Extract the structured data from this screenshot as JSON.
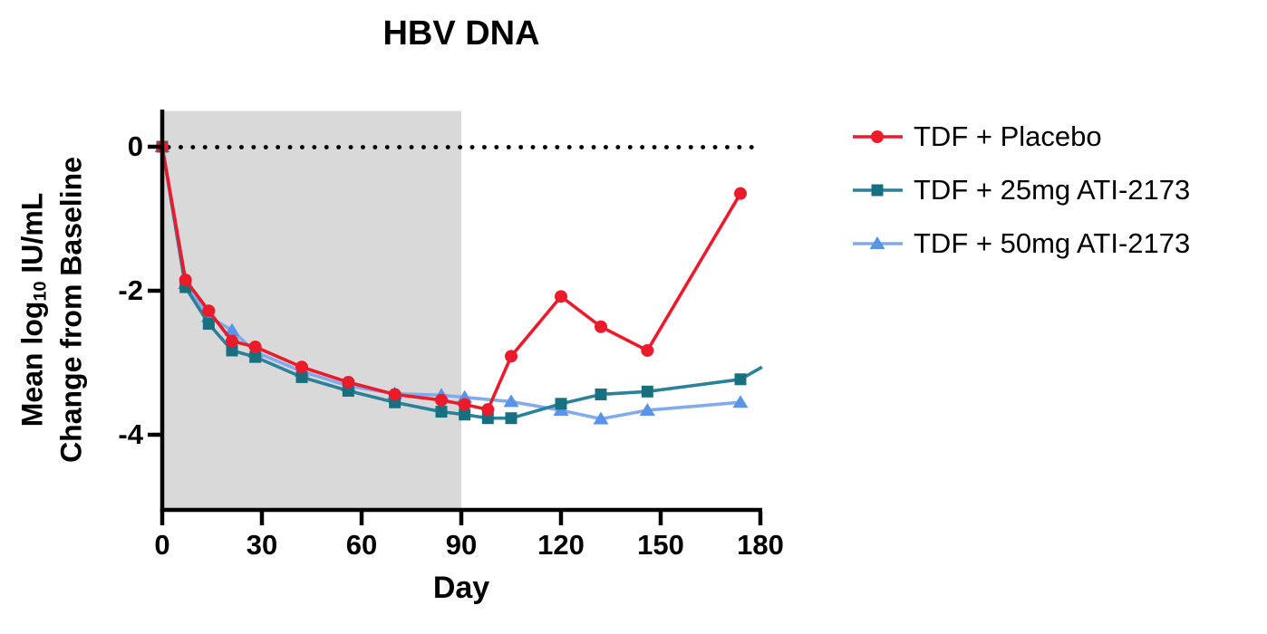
{
  "title": "HBV DNA",
  "chart_data": {
    "type": "line",
    "title": "HBV DNA",
    "xlabel": "Day",
    "ylabel": "Mean log10 IU/mL Change from Baseline",
    "ylabel_parts": {
      "line1_prefix": "Mean log",
      "line1_sub": "10",
      "line1_suffix": " IU/mL",
      "line2": "Change from Baseline"
    },
    "xlim": [
      0,
      180
    ],
    "ylim": [
      -5.05,
      0.5
    ],
    "x_ticks": [
      0,
      30,
      60,
      90,
      120,
      150,
      180
    ],
    "y_ticks": [
      0,
      -2,
      -4
    ],
    "grid": false,
    "legend_position": "right",
    "baseline": {
      "y": 0,
      "style": "dotted",
      "color": "#000000"
    },
    "shaded_region": {
      "x_start": 0,
      "x_end": 90,
      "color": "#D9D9D9"
    },
    "series": [
      {
        "name": "TDF + Placebo",
        "marker": "circle",
        "line_color": "#EC1B2C",
        "marker_color": "#EC1B2C",
        "x": [
          0,
          7,
          14,
          21,
          28,
          42,
          56,
          70,
          84,
          91,
          98,
          105,
          120,
          132,
          146,
          174
        ],
        "y": [
          0,
          -1.85,
          -2.28,
          -2.7,
          -2.78,
          -3.06,
          -3.27,
          -3.44,
          -3.52,
          -3.58,
          -3.65,
          -2.91,
          -2.08,
          -2.5,
          -2.83,
          -0.65
        ]
      },
      {
        "name": "TDF + 25mg ATI-2173",
        "marker": "square",
        "line_color": "#2B809A",
        "marker_color": "#17707F",
        "x": [
          0,
          7,
          14,
          21,
          28,
          42,
          56,
          70,
          84,
          91,
          98,
          105,
          120,
          132,
          146,
          174
        ],
        "y": [
          0,
          -1.95,
          -2.46,
          -2.83,
          -2.92,
          -3.2,
          -3.39,
          -3.55,
          -3.68,
          -3.72,
          -3.77,
          -3.77,
          -3.57,
          -3.44,
          -3.4,
          -3.23
        ],
        "line_extension": {
          "x": 180.5,
          "y": -3.06
        }
      },
      {
        "name": "TDF + 50mg ATI-2173",
        "marker": "triangle",
        "line_color": "#82ABEC",
        "marker_color": "#5B93E8",
        "x": [
          0,
          7,
          14,
          21,
          28,
          42,
          56,
          70,
          84,
          91,
          105,
          120,
          132,
          146,
          174
        ],
        "y": [
          0,
          -1.9,
          -2.36,
          -2.55,
          -2.85,
          -3.12,
          -3.32,
          -3.43,
          -3.45,
          -3.48,
          -3.54,
          -3.66,
          -3.78,
          -3.66,
          -3.55
        ]
      }
    ]
  }
}
